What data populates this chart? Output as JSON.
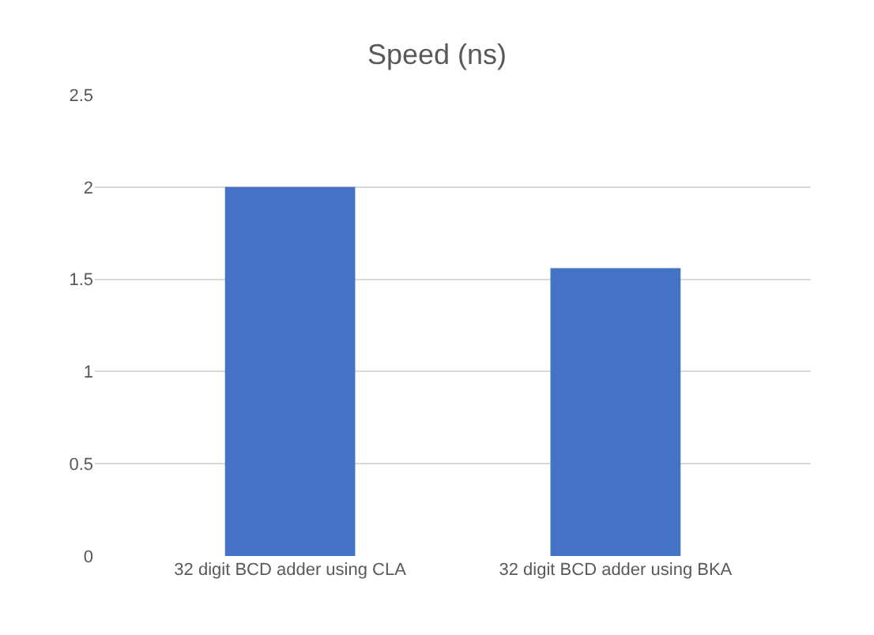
{
  "chart_data": {
    "type": "bar",
    "title": "Speed (ns)",
    "categories": [
      "32 digit BCD adder using CLA",
      "32 digit BCD adder using BKA"
    ],
    "values": [
      2.0,
      1.56
    ],
    "color": "#4472c4",
    "ylim": [
      0,
      2.5
    ],
    "yticks": [
      0,
      0.5,
      1,
      1.5,
      2,
      2.5
    ],
    "grid": "y"
  }
}
